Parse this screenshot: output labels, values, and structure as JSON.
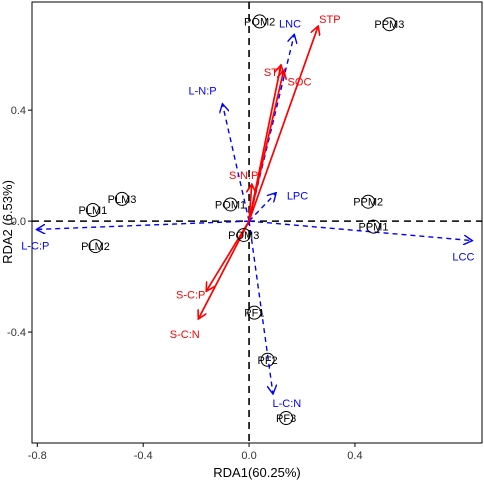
{
  "chart_data": {
    "type": "scatter",
    "subtype": "rda-biplot",
    "title": "",
    "xlabel": "RDA1(60.25%)",
    "ylabel": "RDA2 (6.53%)",
    "xlim": [
      -0.82,
      0.88
    ],
    "ylim": [
      -0.8,
      0.79
    ],
    "xticks": [
      -0.8,
      -0.4,
      0.0,
      0.4
    ],
    "xtick_labels": [
      "-0.8",
      "-0.4",
      "0.0",
      "0.4"
    ],
    "yticks": [
      -0.4,
      0.0,
      0.4
    ],
    "ytick_labels": [
      "-0.4",
      "0.0",
      "0.4"
    ],
    "grid": false,
    "zero_lines": "dashed",
    "colors": {
      "sites": "#000000",
      "soil_arrows": "#ff0000",
      "leaf_arrows": "#0000ff"
    },
    "sites": [
      {
        "label": "POM2",
        "x": 0.04,
        "y": 0.72
      },
      {
        "label": "PPM3",
        "x": 0.53,
        "y": 0.71
      },
      {
        "label": "PLM3",
        "x": -0.48,
        "y": 0.08
      },
      {
        "label": "PLM1",
        "x": -0.59,
        "y": 0.04
      },
      {
        "label": "POM1",
        "x": -0.07,
        "y": 0.06
      },
      {
        "label": "POM3",
        "x": -0.02,
        "y": -0.05
      },
      {
        "label": "PLM2",
        "x": -0.58,
        "y": -0.09
      },
      {
        "label": "PPM2",
        "x": 0.45,
        "y": 0.07
      },
      {
        "label": "PPM1",
        "x": 0.47,
        "y": -0.02
      },
      {
        "label": "PF1",
        "x": 0.02,
        "y": -0.33
      },
      {
        "label": "PF2",
        "x": 0.07,
        "y": -0.5
      },
      {
        "label": "PF3",
        "x": 0.14,
        "y": -0.71
      }
    ],
    "soil_arrows": [
      {
        "label": "STP",
        "x": 0.26,
        "y": 0.7
      },
      {
        "label": "STN",
        "x": 0.12,
        "y": 0.56
      },
      {
        "label": "SOC",
        "x": 0.13,
        "y": 0.54
      },
      {
        "label": "S-N:P",
        "x": 0.01,
        "y": 0.13
      },
      {
        "label": "S-C:P",
        "x": -0.16,
        "y": -0.25
      },
      {
        "label": "S-C:N",
        "x": -0.19,
        "y": -0.35
      }
    ],
    "leaf_arrows": [
      {
        "label": "LNC",
        "x": 0.17,
        "y": 0.67
      },
      {
        "label": "L-N:P",
        "x": -0.1,
        "y": 0.42
      },
      {
        "label": "LPC",
        "x": 0.1,
        "y": 0.1
      },
      {
        "label": "LCC",
        "x": 0.84,
        "y": -0.07
      },
      {
        "label": "L-C:P",
        "x": -0.8,
        "y": -0.03
      },
      {
        "label": "L-C:N",
        "x": 0.09,
        "y": -0.62
      }
    ]
  }
}
